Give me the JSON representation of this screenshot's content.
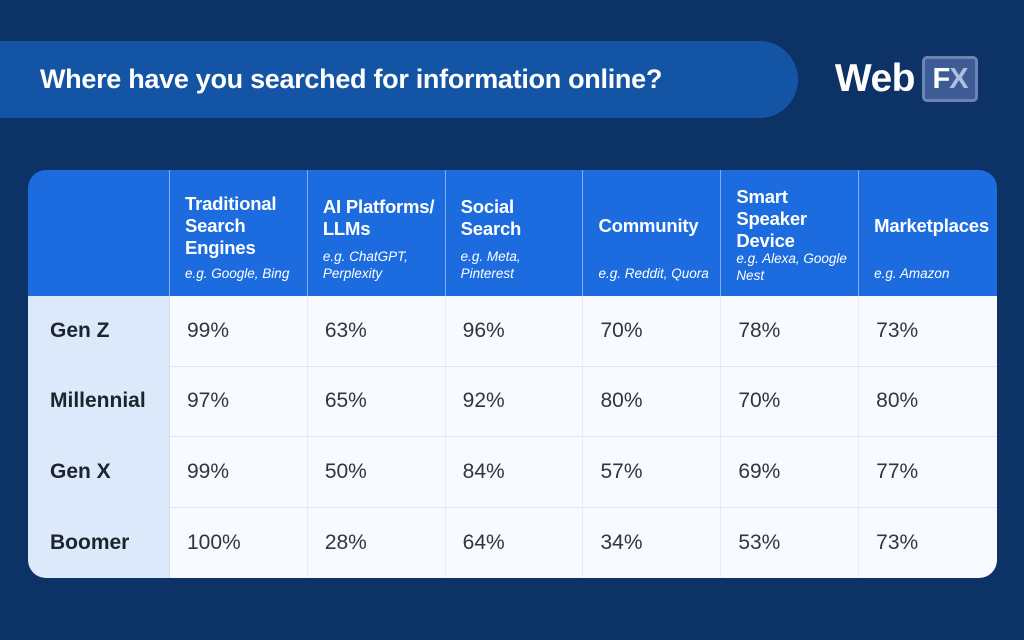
{
  "header": {
    "title": "Where have you searched for information online?",
    "logo": {
      "web": "Web",
      "f": "F",
      "x": "X"
    }
  },
  "colors": {
    "background_navy": "#0C3266",
    "title_bar_blue": "#1355A4",
    "table_header_blue": "#1C6CE0",
    "row_label_bg": "#DCE9FA",
    "cell_bg": "#F7FAFE"
  },
  "table": {
    "columns": [
      {
        "label": "Traditional Search Engines",
        "example": "e.g. Google, Bing"
      },
      {
        "label": "AI Platforms/ LLMs",
        "example": "e.g. ChatGPT, Perplexity"
      },
      {
        "label": "Social Search",
        "example": "e.g. Meta, Pinterest"
      },
      {
        "label": "Community",
        "example": "e.g. Reddit, Quora"
      },
      {
        "label": "Smart Speaker Device",
        "example": "e.g. Alexa, Google Nest"
      },
      {
        "label": "Marketplaces",
        "example": "e.g. Amazon"
      }
    ],
    "rows": [
      {
        "name": "Gen Z",
        "values": [
          "99%",
          "63%",
          "96%",
          "70%",
          "78%",
          "73%"
        ]
      },
      {
        "name": "Millennial",
        "values": [
          "97%",
          "65%",
          "92%",
          "80%",
          "70%",
          "80%"
        ]
      },
      {
        "name": "Gen X",
        "values": [
          "99%",
          "50%",
          "84%",
          "57%",
          "69%",
          "77%"
        ]
      },
      {
        "name": "Boomer",
        "values": [
          "100%",
          "28%",
          "64%",
          "34%",
          "53%",
          "73%"
        ]
      }
    ]
  },
  "chart_data": {
    "type": "table",
    "title": "Where have you searched for information online?",
    "unit": "%",
    "categories": [
      "Traditional Search Engines",
      "AI Platforms/LLMs",
      "Social Search",
      "Community",
      "Smart Speaker Device",
      "Marketplaces"
    ],
    "category_examples": [
      "e.g. Google, Bing",
      "e.g. ChatGPT, Perplexity",
      "e.g. Meta, Pinterest",
      "e.g. Reddit, Quora",
      "e.g. Alexa, Google Nest",
      "e.g. Amazon"
    ],
    "series": [
      {
        "name": "Gen Z",
        "values": [
          99,
          63,
          96,
          70,
          78,
          73
        ]
      },
      {
        "name": "Millennial",
        "values": [
          97,
          65,
          92,
          80,
          70,
          80
        ]
      },
      {
        "name": "Gen X",
        "values": [
          99,
          50,
          84,
          57,
          69,
          77
        ]
      },
      {
        "name": "Boomer",
        "values": [
          100,
          28,
          64,
          34,
          53,
          73
        ]
      }
    ]
  }
}
